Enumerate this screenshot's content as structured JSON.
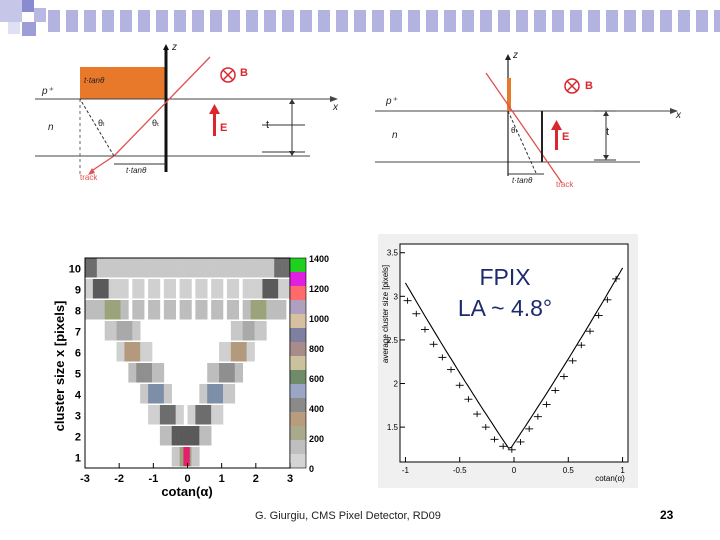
{
  "slide": {
    "footer": "G. Giurgiu, CMS Pixel Detector, RD09",
    "page_number": "23"
  },
  "diagram_left": {
    "labels": {
      "z": "z",
      "x": "x",
      "p_plus": "p⁺",
      "n": "n",
      "t_tan_top": "t·tanθ",
      "t_tan_bottom": "t·tanθ",
      "theta_l": "θₗ",
      "theta_t": "θₜ",
      "B": "B",
      "E": "E",
      "t": "t",
      "track": "track"
    },
    "colors": {
      "fill": "#e8782a",
      "track": "#e05050",
      "field": "#d9282f",
      "line": "#444444"
    }
  },
  "diagram_right": {
    "labels": {
      "z": "z",
      "x": "x",
      "p_plus": "p⁺",
      "n": "n",
      "t_tan": "t·tanθ",
      "theta": "θₗ",
      "B": "B",
      "E": "E",
      "t": "t",
      "track": "track"
    }
  },
  "chart_data": [
    {
      "type": "heatmap",
      "title": "",
      "xlabel": "cotan(α)",
      "ylabel": "cluster size x [pixels]",
      "xlim": [
        -3,
        3
      ],
      "ylim": [
        0.5,
        10.5
      ],
      "x_ticks": [
        "-3",
        "-2",
        "-1",
        "0",
        "1",
        "2",
        "3"
      ],
      "y_ticks": [
        "1",
        "2",
        "3",
        "4",
        "5",
        "6",
        "7",
        "8",
        "9",
        "10"
      ],
      "colorbar_ticks": [
        "0",
        "200",
        "400",
        "600",
        "800",
        "1000",
        "1200",
        "1400"
      ],
      "colorbar_range": [
        0,
        1400
      ]
    },
    {
      "type": "line",
      "annotation": "FPIX\nLA ~ 4.8°",
      "xlabel": "cotan(α)",
      "ylabel": "average cluster size [pixels]",
      "xlim": [
        -1.05,
        1.05
      ],
      "ylim": [
        1.1,
        3.6
      ],
      "x_ticks": [
        "-1",
        "-0.5",
        "0",
        "0.5",
        "1"
      ],
      "y_ticks": [
        "1.5",
        "2",
        "2.5",
        "3",
        "3.5"
      ],
      "x": [
        -0.98,
        -0.9,
        -0.82,
        -0.74,
        -0.66,
        -0.58,
        -0.5,
        -0.42,
        -0.34,
        -0.26,
        -0.18,
        -0.1,
        -0.02,
        0.06,
        0.14,
        0.22,
        0.3,
        0.38,
        0.46,
        0.54,
        0.62,
        0.7,
        0.78,
        0.86,
        0.94
      ],
      "y": [
        2.95,
        2.8,
        2.62,
        2.45,
        2.3,
        2.16,
        1.98,
        1.82,
        1.65,
        1.5,
        1.36,
        1.28,
        1.24,
        1.33,
        1.48,
        1.62,
        1.76,
        1.92,
        2.08,
        2.26,
        2.44,
        2.6,
        2.78,
        2.96,
        3.2
      ]
    }
  ]
}
